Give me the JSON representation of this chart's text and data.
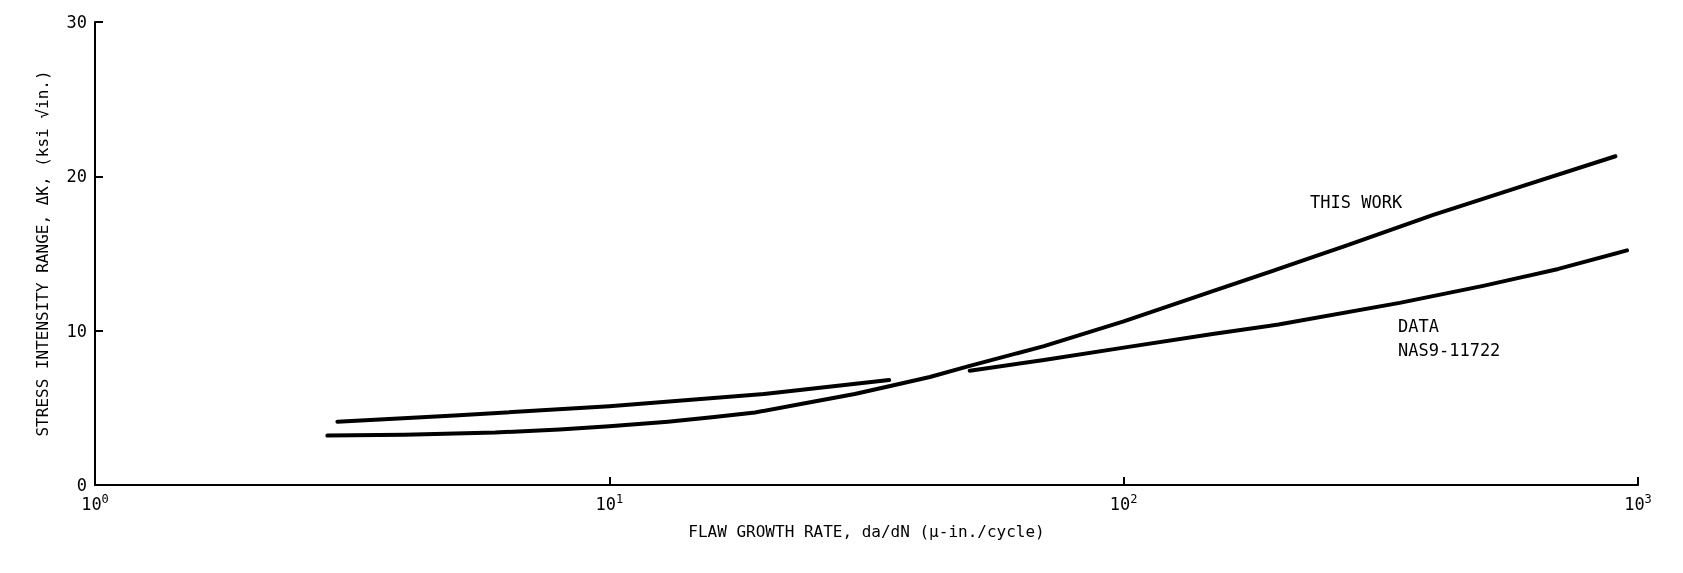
{
  "chart_data": {
    "type": "line",
    "xlabel": "FLAW GROWTH RATE, da/dN (μ-in./cycle)",
    "ylabel": "STRESS INTENSITY RANGE, ΔK, (ksi √in.)",
    "log": "x",
    "xlim": [
      1,
      1000
    ],
    "xticks": [
      {
        "value": 1,
        "label": "10$^{0}$"
      },
      {
        "value": 10,
        "label": "10$^{1}$"
      },
      {
        "value": 100,
        "label": "10$^{2}$"
      },
      {
        "value": 1000,
        "label": "10$^{3}$"
      }
    ],
    "ylim": [
      0,
      30
    ],
    "yticks": [
      0,
      10,
      20,
      30
    ],
    "grid": false,
    "marker": "none",
    "line_style": "solid",
    "series": [
      {
        "color": "#000000",
        "x": [
          2.83,
          4,
          6,
          8,
          10,
          13,
          16,
          19.2,
          24,
          30,
          35,
          42,
          50,
          70,
          100,
          150,
          200,
          270,
          400,
          600,
          904
        ],
        "values": [
          3.2,
          3.25,
          3.4,
          3.6,
          3.8,
          4.1,
          4.4,
          4.7,
          5.3,
          5.9,
          6.4,
          7.0,
          7.7,
          9.0,
          10.6,
          12.6,
          14.0,
          15.5,
          17.5,
          19.4,
          21.3
        ]
      },
      {
        "color": "#000000",
        "x": [
          2.96,
          5,
          10,
          20,
          35
        ],
        "values": [
          4.1,
          4.5,
          5.1,
          5.9,
          6.8
        ]
      },
      {
        "color": "#000000",
        "x": [
          50.2,
          70,
          100,
          150,
          200,
          344,
          500,
          700,
          952
        ],
        "values": [
          7.4,
          8.1,
          8.9,
          9.8,
          10.4,
          11.8,
          12.9,
          14.0,
          15.2
        ]
      }
    ],
    "annotations": [
      "THIS WORK",
      "DATA\nNAS9-11722"
    ]
  }
}
